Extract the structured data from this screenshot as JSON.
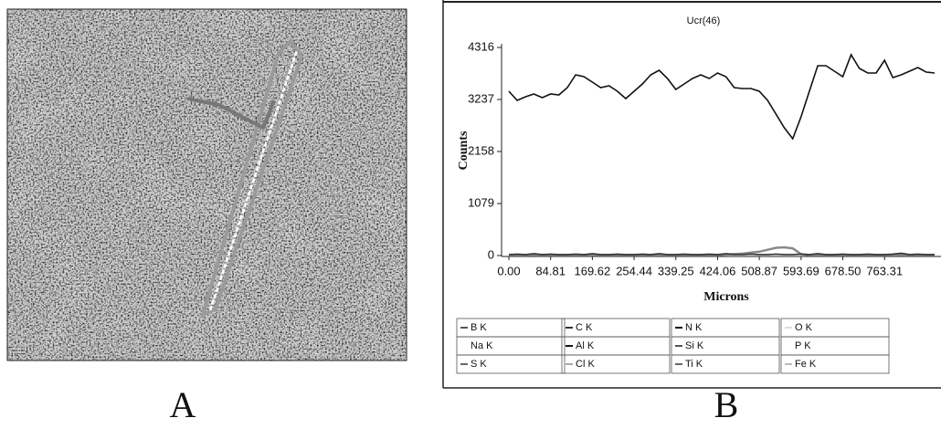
{
  "figure_labels": [
    "A",
    "B"
  ],
  "chart_data": {
    "type": "line",
    "title": "Ucr(46)",
    "x_label": "Microns",
    "y_label": "Counts",
    "x": [
      0,
      16.96,
      33.92,
      50.88,
      67.84,
      84.8,
      101.76,
      118.72,
      135.68,
      152.64,
      169.6,
      186.56,
      203.52,
      220.48,
      237.44,
      254.4,
      271.36,
      288.32,
      305.28,
      322.24,
      339.2,
      356.16,
      373.12,
      390.08,
      407.04,
      424,
      440.96,
      457.92,
      474.88,
      491.84,
      508.8,
      525.76,
      542.72,
      559.68,
      576.64,
      593.6,
      610.56,
      627.52,
      644.48,
      661.44,
      678.4,
      695.36,
      712.32,
      729.28,
      746.24,
      763.2,
      780.16,
      797.12,
      814.08,
      831.04,
      848,
      864.96
    ],
    "xlim": [
      0,
      878
    ],
    "xticks": [
      {
        "value": 0,
        "label": "0.00"
      },
      84.81,
      169.62,
      254.44,
      339.25,
      424.06,
      508.87,
      593.69,
      {
        "value": 678.5,
        "label": "678.50"
      },
      763.31
    ],
    "ylim": [
      0,
      4316
    ],
    "yticks": [
      0,
      1079,
      2158,
      3237,
      4316
    ],
    "series": [
      {
        "color": "#111111",
        "values": [
          3407,
          3218,
          3294,
          3350,
          3275,
          3350,
          3331,
          3483,
          3748,
          3710,
          3597,
          3483,
          3521,
          3407,
          3256,
          3407,
          3559,
          3748,
          3843,
          3672,
          3445,
          3559,
          3672,
          3748,
          3672,
          3786,
          3710,
          3483,
          3464,
          3464,
          3407,
          3218,
          2932,
          2650,
          2423,
          2877,
          3407,
          3937,
          3937,
          3824,
          3710,
          4165,
          3880,
          3786,
          3786,
          4051,
          3691,
          3748,
          3824,
          3899,
          3805,
          3786
        ]
      },
      {
        "color": "#8a8a8a",
        "values": [
          10,
          10,
          10,
          10,
          10,
          10,
          10,
          10,
          10,
          10,
          10,
          10,
          10,
          10,
          10,
          10,
          10,
          10,
          10,
          10,
          10,
          10,
          10,
          10,
          10,
          10,
          20,
          30,
          40,
          60,
          80,
          120,
          160,
          170,
          150,
          30,
          10,
          10,
          10,
          10,
          10,
          10,
          10,
          10,
          10,
          10,
          10,
          10,
          10,
          10,
          10,
          10
        ]
      },
      {
        "color": "#333333",
        "values": [
          20,
          30,
          20,
          40,
          20,
          30,
          20,
          20,
          30,
          20,
          40,
          20,
          20,
          30,
          20,
          20,
          30,
          20,
          40,
          20,
          20,
          30,
          20,
          20,
          30,
          20,
          40,
          20,
          20,
          30,
          20,
          20,
          30,
          20,
          20,
          30,
          20,
          40,
          20,
          20,
          30,
          20,
          20,
          30,
          20,
          20,
          30,
          50,
          20,
          30,
          20,
          20
        ]
      }
    ],
    "legend_entries": [
      {
        "label": "B K",
        "color": "#555555"
      },
      {
        "label": "C K",
        "color": "#333333"
      },
      {
        "label": "N K",
        "color": "#111111"
      },
      {
        "label": "O K",
        "color": "#dddddd"
      },
      {
        "label": "Na K",
        "color": "#ffffff"
      },
      {
        "label": "Al K",
        "color": "#111111"
      },
      {
        "label": "Si K",
        "color": "#555555"
      },
      {
        "label": "P K",
        "color": "#ffffff"
      },
      {
        "label": "S K",
        "color": "#666666"
      },
      {
        "label": "Cl K",
        "color": "#aaaaaa"
      },
      {
        "label": "Ti K",
        "color": "#666666"
      },
      {
        "label": "Fe K",
        "color": "#bbbbbb"
      }
    ]
  }
}
